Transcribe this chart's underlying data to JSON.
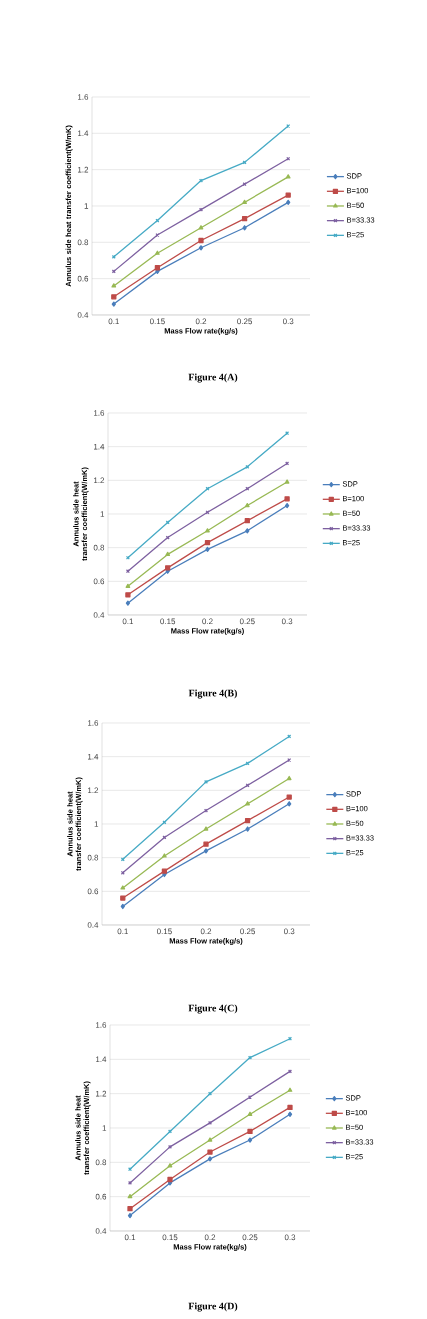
{
  "chart_data": [
    {
      "type": "line",
      "categories": [
        "0.1",
        "0.15",
        "0.2",
        "0.25",
        "0.3"
      ],
      "xlabel": "Mass Flow rate(kg/s)",
      "ylabel": "Annulus side heat transfer coefficient(W/mK)",
      "ylim": [
        0.4,
        1.6
      ],
      "yticks": [
        0.4,
        0.6,
        0.8,
        1,
        1.2,
        1.4,
        1.6
      ],
      "grid": "y",
      "legend": "right",
      "annotations": [
        "Figure 4(A)"
      ],
      "series": [
        {
          "name": "SDP",
          "color": "#4a7ebb",
          "marker": "diamond",
          "values": [
            0.46,
            0.64,
            0.77,
            0.88,
            1.02
          ]
        },
        {
          "name": "B=100",
          "color": "#be4b48",
          "marker": "square",
          "values": [
            0.5,
            0.66,
            0.81,
            0.93,
            1.06
          ]
        },
        {
          "name": "B=50",
          "color": "#98b954",
          "marker": "triangle",
          "values": [
            0.56,
            0.74,
            0.88,
            1.02,
            1.16
          ]
        },
        {
          "name": "B=33.33",
          "color": "#7d60a0",
          "marker": "cross",
          "values": [
            0.64,
            0.84,
            0.98,
            1.12,
            1.26
          ]
        },
        {
          "name": "B=25",
          "color": "#46aac5",
          "marker": "cross",
          "values": [
            0.72,
            0.92,
            1.14,
            1.24,
            1.44
          ]
        }
      ]
    },
    {
      "type": "line",
      "categories": [
        "0.1",
        "0.15",
        "0.2",
        "0.25",
        "0.3"
      ],
      "xlabel": "Mass Flow rate(kg/s)",
      "ylabel": "Annulus side heat transfer coefficient(W/mK)",
      "ylim": [
        0.4,
        1.6
      ],
      "yticks": [
        0.4,
        0.6,
        0.8,
        1,
        1.2,
        1.4,
        1.6
      ],
      "grid": "y",
      "legend": "right",
      "annotations": [
        "Figure 4(B)"
      ],
      "series": [
        {
          "name": "SDP",
          "color": "#4a7ebb",
          "marker": "diamond",
          "values": [
            0.47,
            0.66,
            0.79,
            0.9,
            1.05
          ]
        },
        {
          "name": "B=100",
          "color": "#be4b48",
          "marker": "square",
          "values": [
            0.52,
            0.68,
            0.83,
            0.96,
            1.09
          ]
        },
        {
          "name": "B=50",
          "color": "#98b954",
          "marker": "triangle",
          "values": [
            0.57,
            0.76,
            0.9,
            1.05,
            1.19
          ]
        },
        {
          "name": "B=33.33",
          "color": "#7d60a0",
          "marker": "cross",
          "values": [
            0.66,
            0.86,
            1.01,
            1.15,
            1.3
          ]
        },
        {
          "name": "B=25",
          "color": "#46aac5",
          "marker": "cross",
          "values": [
            0.74,
            0.95,
            1.15,
            1.28,
            1.48
          ]
        }
      ]
    },
    {
      "type": "line",
      "categories": [
        "0.1",
        "0.15",
        "0.2",
        "0.25",
        "0.3"
      ],
      "xlabel": "Mass Flow rate(kg/s)",
      "ylabel": "Annulus side heat transfer coefficient(W/mK)",
      "ylim": [
        0.4,
        1.6
      ],
      "yticks": [
        0.4,
        0.6,
        0.8,
        1,
        1.2,
        1.4,
        1.6
      ],
      "grid": "y",
      "legend": "right",
      "annotations": [
        "Figure 4(C)"
      ],
      "series": [
        {
          "name": "SDP",
          "color": "#4a7ebb",
          "marker": "diamond",
          "values": [
            0.51,
            0.7,
            0.84,
            0.97,
            1.12
          ]
        },
        {
          "name": "B=100",
          "color": "#be4b48",
          "marker": "square",
          "values": [
            0.56,
            0.72,
            0.88,
            1.02,
            1.16
          ]
        },
        {
          "name": "B=50",
          "color": "#98b954",
          "marker": "triangle",
          "values": [
            0.62,
            0.81,
            0.97,
            1.12,
            1.27
          ]
        },
        {
          "name": "B=33.33",
          "color": "#7d60a0",
          "marker": "cross",
          "values": [
            0.71,
            0.92,
            1.08,
            1.23,
            1.38
          ]
        },
        {
          "name": "B=25",
          "color": "#46aac5",
          "marker": "cross",
          "values": [
            0.79,
            1.01,
            1.25,
            1.36,
            1.52
          ]
        }
      ]
    },
    {
      "type": "line",
      "categories": [
        "0.1",
        "0.15",
        "0.2",
        "0.25",
        "0.3"
      ],
      "xlabel": "Mass Flow rate(kg/s)",
      "ylabel": "Annulus side heat transfer coefficient(W/mK)",
      "ylim": [
        0.4,
        1.6
      ],
      "yticks": [
        0.4,
        0.6,
        0.8,
        1,
        1.2,
        1.4,
        1.6
      ],
      "grid": "y",
      "legend": "right",
      "annotations": [
        "Figure 4(D)"
      ],
      "series": [
        {
          "name": "SDP",
          "color": "#4a7ebb",
          "marker": "diamond",
          "values": [
            0.49,
            0.68,
            0.82,
            0.93,
            1.08
          ]
        },
        {
          "name": "B=100",
          "color": "#be4b48",
          "marker": "square",
          "values": [
            0.53,
            0.7,
            0.86,
            0.98,
            1.12
          ]
        },
        {
          "name": "B=50",
          "color": "#98b954",
          "marker": "triangle",
          "values": [
            0.6,
            0.78,
            0.93,
            1.08,
            1.22
          ]
        },
        {
          "name": "B=33.33",
          "color": "#7d60a0",
          "marker": "cross",
          "values": [
            0.68,
            0.89,
            1.03,
            1.18,
            1.33
          ]
        },
        {
          "name": "B=25",
          "color": "#46aac5",
          "marker": "cross",
          "values": [
            0.76,
            0.98,
            1.2,
            1.41,
            1.52
          ]
        }
      ]
    }
  ]
}
